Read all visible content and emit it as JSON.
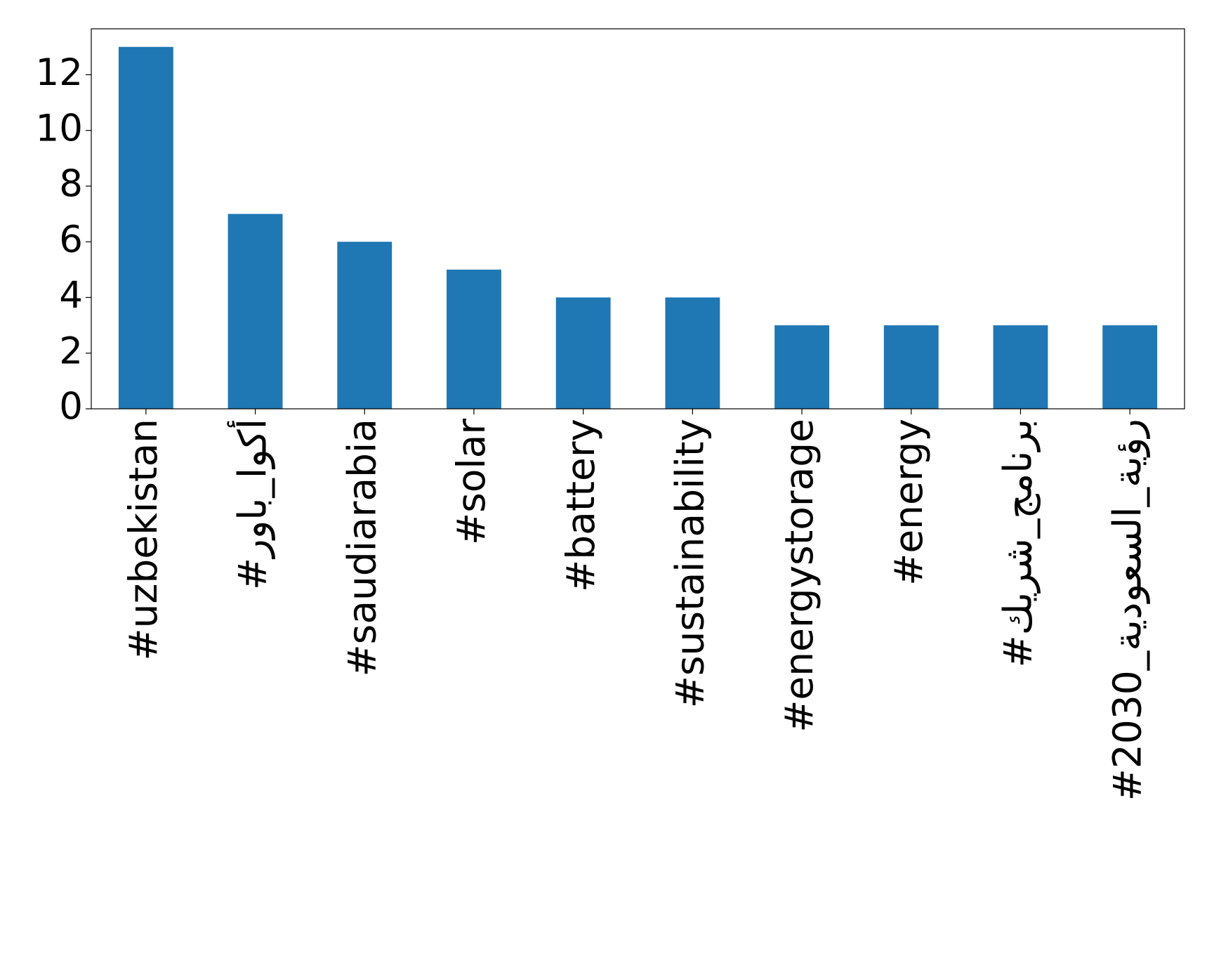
{
  "chart_data": {
    "type": "bar",
    "categories": [
      "#uzbekistan",
      "#أكوا_باور",
      "#saudiarabia",
      "#solar",
      "#battery",
      "#sustainability",
      "#energystorage",
      "#energy",
      "#برنامج_شريك",
      "#رؤية_السعودية_2030"
    ],
    "values": [
      13,
      7,
      6,
      5,
      4,
      4,
      3,
      3,
      3,
      3
    ],
    "color": "#1f77b4",
    "ylim": [
      0,
      13.65
    ],
    "yticks": [
      0,
      2,
      4,
      6,
      8,
      10,
      12
    ],
    "grid": false
  }
}
